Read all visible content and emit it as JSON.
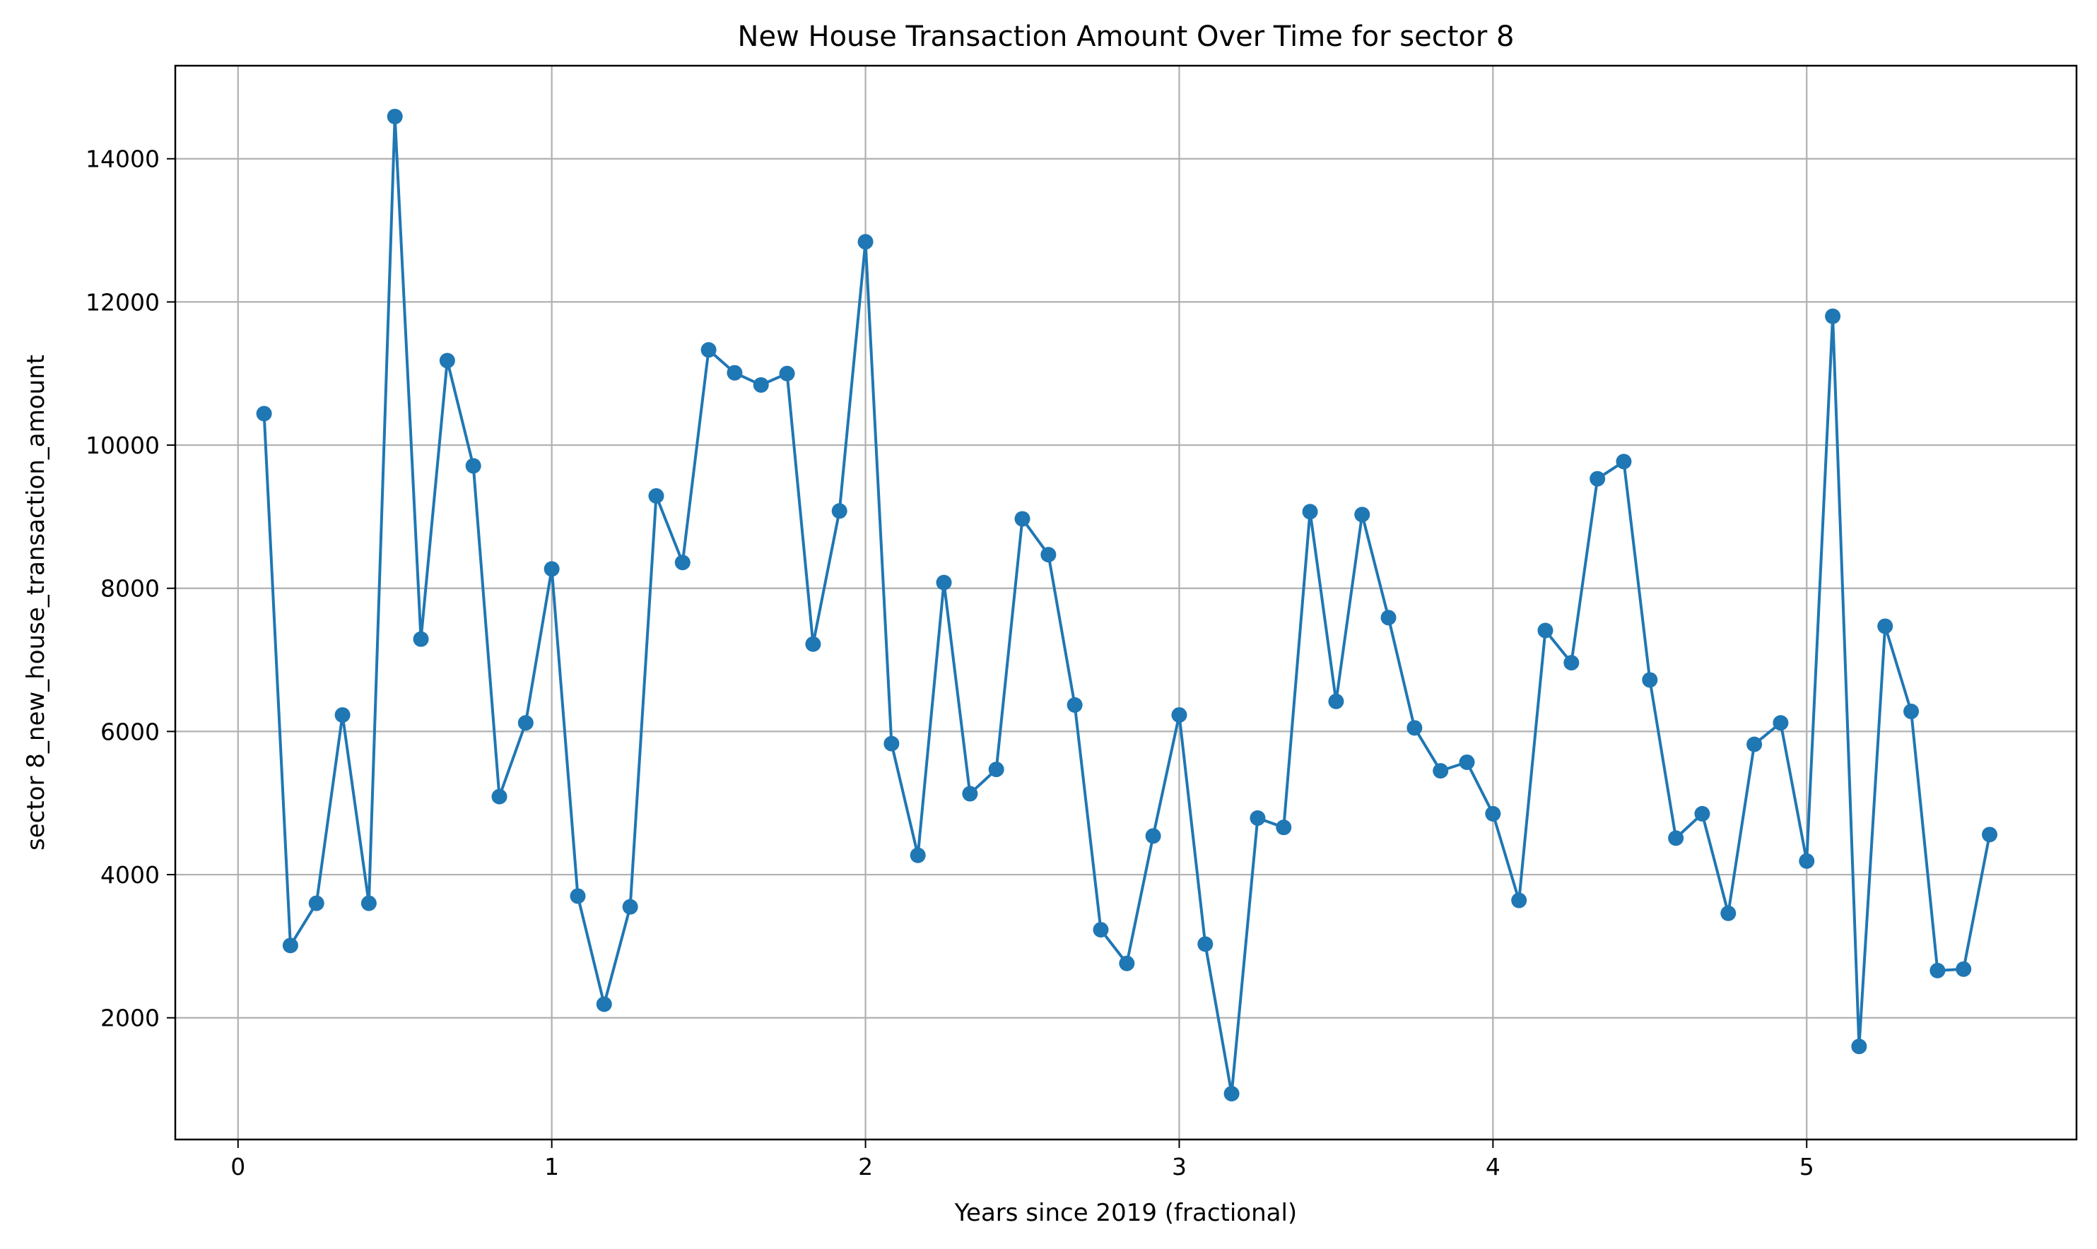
{
  "chart_data": {
    "type": "line",
    "title": "New House Transaction Amount Over Time for sector 8",
    "xlabel": "Years since 2019 (fractional)",
    "ylabel": "sector 8_new_house_transaction_amount",
    "xlim": [
      -0.2,
      5.86
    ],
    "ylim": [
      300,
      15300
    ],
    "xticks": [
      0,
      1,
      2,
      3,
      4,
      5
    ],
    "yticks": [
      2000,
      4000,
      6000,
      8000,
      10000,
      12000,
      14000
    ],
    "grid": true,
    "marker": "circle",
    "colors": {
      "line": "#1f77b4",
      "grid": "#b0b0b0",
      "axis": "#000000"
    },
    "series": [
      {
        "x": [
          0.083,
          0.167,
          0.25,
          0.333,
          0.417,
          0.5,
          0.583,
          0.667,
          0.75,
          0.833,
          0.917,
          1.0,
          1.083,
          1.167,
          1.25,
          1.333,
          1.417,
          1.5,
          1.583,
          1.667,
          1.75,
          1.833,
          1.917,
          2.0,
          2.083,
          2.167,
          2.25,
          2.333,
          2.417,
          2.5,
          2.583,
          2.667,
          2.75,
          2.833,
          2.917,
          3.0,
          3.083,
          3.167,
          3.25,
          3.333,
          3.417,
          3.5,
          3.583,
          3.667,
          3.75,
          3.833,
          3.917,
          4.0,
          4.083,
          4.167,
          4.25,
          4.333,
          4.417,
          4.5,
          4.583,
          4.667,
          4.75,
          4.833,
          4.917,
          5.0,
          5.083,
          5.167,
          5.25,
          5.333,
          5.417,
          5.5,
          5.583
        ],
        "y": [
          10440,
          3010,
          3600,
          6230,
          3600,
          14590,
          7290,
          11180,
          9710,
          5090,
          6120,
          8270,
          3700,
          2190,
          3550,
          9290,
          8360,
          11330,
          11010,
          10840,
          11000,
          7220,
          9080,
          12840,
          5830,
          4270,
          8080,
          5130,
          5470,
          8970,
          8470,
          6370,
          3230,
          2760,
          4540,
          6230,
          3030,
          940,
          4790,
          4660,
          9070,
          6420,
          9030,
          7590,
          6050,
          5450,
          5570,
          4850,
          3640,
          7410,
          6960,
          9530,
          9770,
          6720,
          4510,
          4850,
          3460,
          5820,
          6120,
          4190,
          11800,
          1600,
          7470,
          6280,
          2660,
          2680,
          4560
        ]
      }
    ]
  }
}
